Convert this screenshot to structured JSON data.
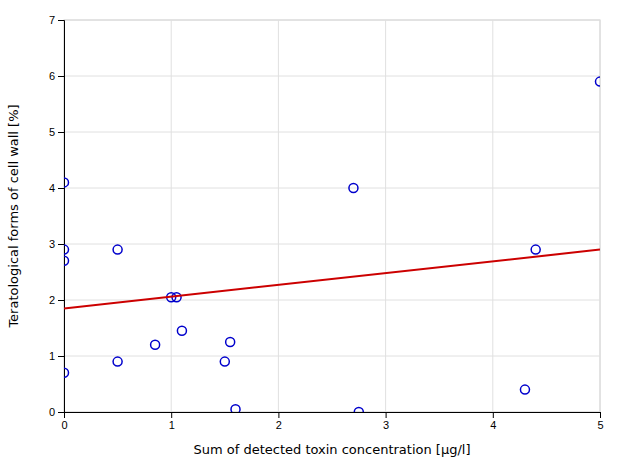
{
  "chart_data": {
    "type": "scatter",
    "xlabel": "Sum of detected toxin concentration [μg/l]",
    "ylabel": "Teratological forms of cell wall [%]",
    "xlim": [
      0,
      5
    ],
    "ylim": [
      0,
      7
    ],
    "xticks": [
      0,
      1,
      2,
      3,
      4,
      5
    ],
    "yticks": [
      0,
      1,
      2,
      3,
      4,
      5,
      6,
      7
    ],
    "grid": true,
    "series": [
      {
        "type": "scatter",
        "marker": "circle",
        "color": "#0000cc",
        "x": [
          0.0,
          0.0,
          0.0,
          0.0,
          0.5,
          0.5,
          0.85,
          1.0,
          1.05,
          1.1,
          1.5,
          1.55,
          1.6,
          2.7,
          2.75,
          4.3,
          4.4,
          5.0
        ],
        "values": [
          0.7,
          2.7,
          2.9,
          4.1,
          0.9,
          2.9,
          1.2,
          2.05,
          2.05,
          1.45,
          0.9,
          1.25,
          0.05,
          4.0,
          0.0,
          0.4,
          2.9,
          5.9
        ]
      },
      {
        "type": "line",
        "line_style": "solid",
        "color": "#cc0000",
        "x": [
          0.0,
          5.0
        ],
        "values": [
          1.85,
          2.9
        ]
      }
    ]
  }
}
